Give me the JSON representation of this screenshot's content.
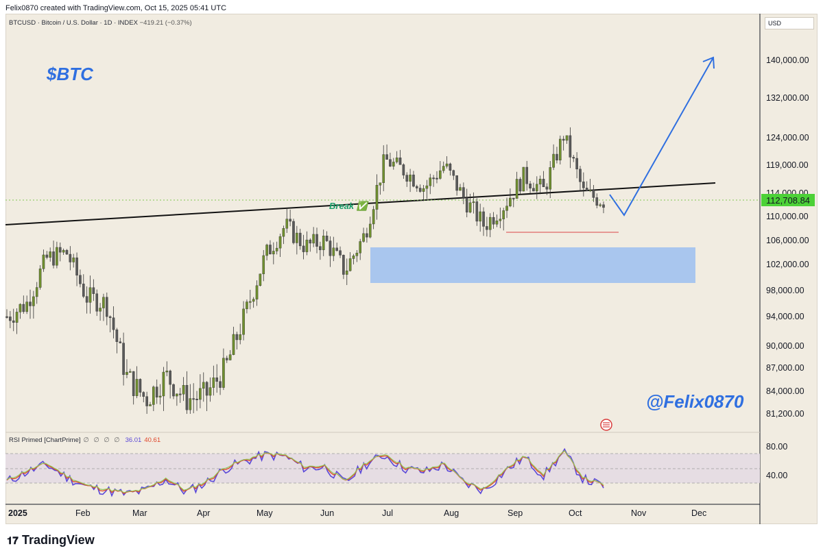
{
  "header": {
    "text": "Felix0870 created with TradingView.com, Oct 15, 2025 05:41 UTC"
  },
  "symbol": {
    "name": "BTCUSD · Bitcoin / U.S. Dollar · 1D · INDEX",
    "change": "−419.21 (−0.37%)"
  },
  "currency": "USD",
  "ticker_label": "$BTC",
  "watermark": "@Felix0870",
  "footer": {
    "brand": "TradingView"
  },
  "annotation": {
    "break_label": "Break ✅"
  },
  "rsi": {
    "name": "RSI Primed [ChartPrime]",
    "symbols": "∅ ∅ ∅ ∅",
    "value1": "36.01",
    "value2": "40.61"
  },
  "colors": {
    "candle_up": "#6f8f2e",
    "candle_down": "#5a5a5a",
    "zone": "#a9c6ee",
    "trend": "#111111",
    "arrow": "#2f6fe0",
    "support": "#e06666",
    "price_tag": "#4cd137"
  },
  "chart_data": {
    "type": "candlestick",
    "title": "BTCUSD · Bitcoin / U.S. Dollar · 1D · INDEX",
    "y_axis_ticks": [
      "140,000.00",
      "132,000.00",
      "124,000.00",
      "119,000.00",
      "114,000.00",
      "110,000.00",
      "106,000.00",
      "102,000.00",
      "98,000.00",
      "94,000.00",
      "90,000.00",
      "87,000.00",
      "84,000.00",
      "81,200.00"
    ],
    "x_axis_ticks": [
      "2025",
      "Feb",
      "Mar",
      "Apr",
      "May",
      "Jun",
      "Jul",
      "Aug",
      "Sep",
      "Oct",
      "Nov",
      "Dec"
    ],
    "last_price": "112,708.84",
    "rsi_ticks": [
      "80.00",
      "40.00"
    ],
    "x": [
      "Jan 1",
      "Jan 11",
      "Jan 21",
      "Feb 1",
      "Feb 11",
      "Feb 21",
      "Mar 1",
      "Mar 11",
      "Mar 21",
      "Apr 1",
      "Apr 11",
      "Apr 21",
      "May 1",
      "May 11",
      "May 22",
      "Jun 1",
      "Jun 11",
      "Jun 22",
      "Jul 1",
      "Jul 14",
      "Jul 25",
      "Aug 1",
      "Aug 14",
      "Aug 22",
      "Sep 1",
      "Sep 10",
      "Sep 20",
      "Oct 1",
      "Oct 6",
      "Oct 10",
      "Oct 15"
    ],
    "close": [
      94000,
      96000,
      103000,
      104000,
      97000,
      96000,
      86000,
      83000,
      86000,
      83000,
      83500,
      87000,
      94500,
      103500,
      108500,
      105000,
      106000,
      101000,
      107000,
      120000,
      118000,
      115000,
      119000,
      113000,
      108500,
      112000,
      117000,
      114500,
      124500,
      114000,
      112708.84
    ],
    "rsi": [
      42,
      55,
      65,
      48,
      35,
      30,
      25,
      30,
      45,
      28,
      40,
      60,
      70,
      78,
      76,
      60,
      62,
      40,
      65,
      78,
      60,
      55,
      65,
      40,
      30,
      55,
      75,
      50,
      82,
      45,
      36
    ],
    "series": [
      {
        "name": "RSI Primed [ChartPrime]",
        "values": [
          42,
          55,
          65,
          48,
          35,
          30,
          25,
          30,
          45,
          28,
          40,
          60,
          70,
          78,
          76,
          60,
          62,
          40,
          65,
          78,
          60,
          55,
          65,
          40,
          30,
          55,
          75,
          50,
          82,
          45,
          36
        ]
      }
    ]
  }
}
